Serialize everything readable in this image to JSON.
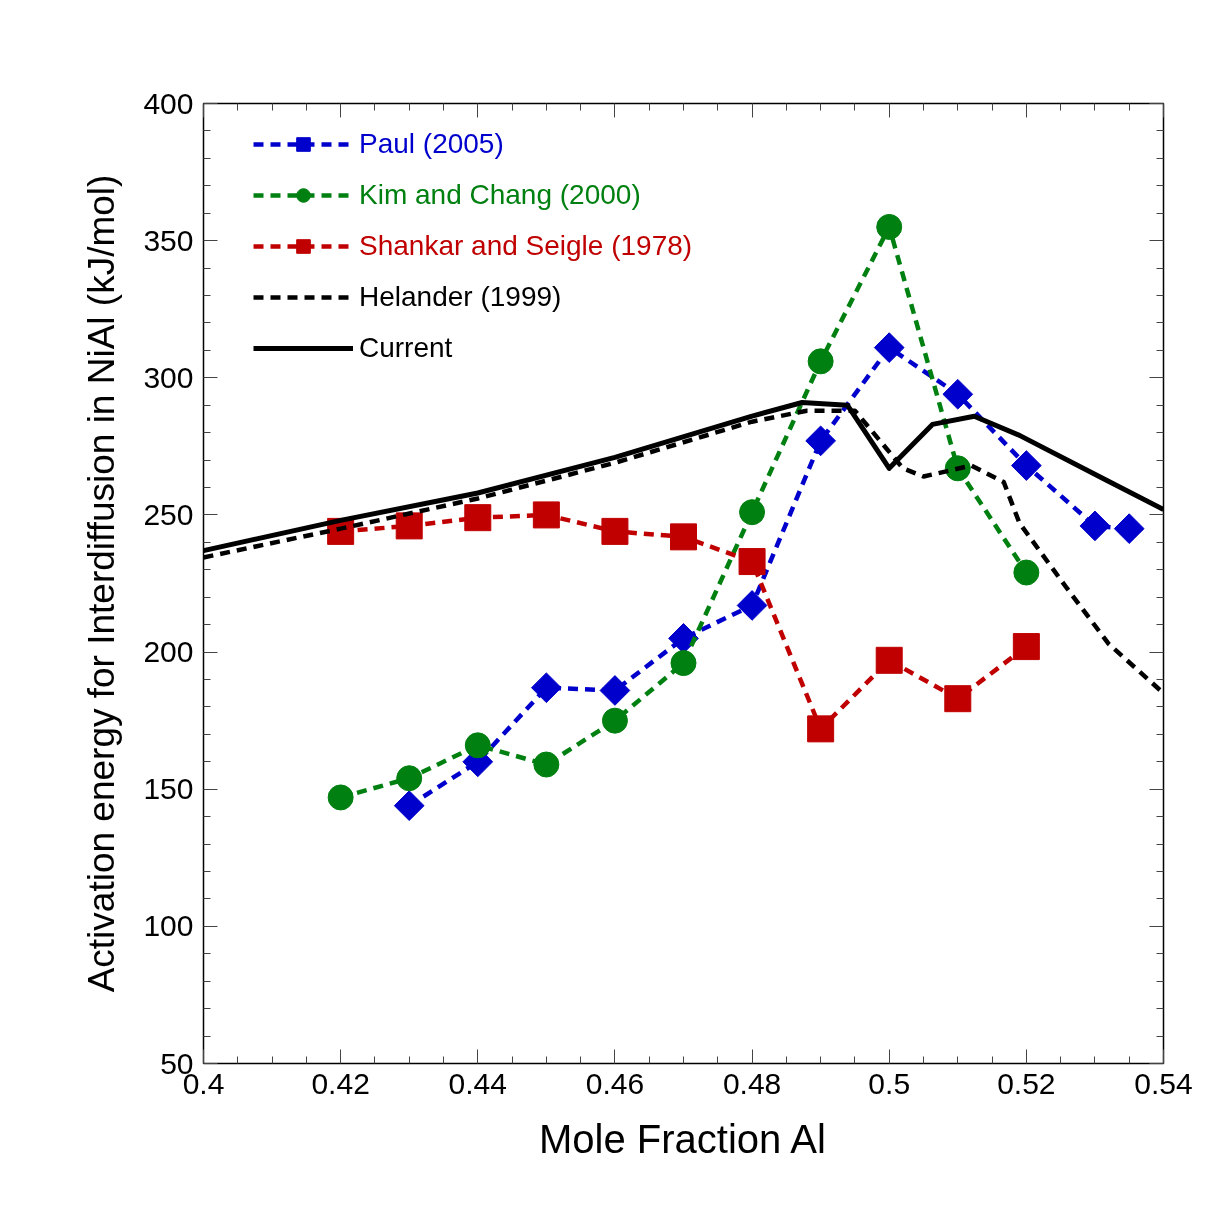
{
  "chart_data": {
    "type": "line",
    "xlabel": "Mole Fraction Al",
    "ylabel": "Activation energy for Interdiffusion in NiAl (kJ/mol)",
    "xlim": [
      0.4,
      0.54
    ],
    "ylim": [
      50,
      400
    ],
    "xticks": [
      0.4,
      {
        "value": 0.405,
        "label": null
      },
      {
        "value": 0.41,
        "label": null
      },
      {
        "value": 0.415,
        "label": null
      },
      0.42,
      {
        "value": 0.425,
        "label": null
      },
      {
        "value": 0.43,
        "label": null
      },
      {
        "value": 0.435,
        "label": null
      },
      0.44,
      {
        "value": 0.445,
        "label": null
      },
      {
        "value": 0.45,
        "label": null
      },
      {
        "value": 0.455,
        "label": null
      },
      0.46,
      {
        "value": 0.465,
        "label": null
      },
      {
        "value": 0.47,
        "label": null
      },
      {
        "value": 0.475,
        "label": null
      },
      0.48,
      {
        "value": 0.485,
        "label": null
      },
      {
        "value": 0.49,
        "label": null
      },
      {
        "value": 0.495,
        "label": null
      },
      0.5,
      {
        "value": 0.505,
        "label": null
      },
      {
        "value": 0.51,
        "label": null
      },
      {
        "value": 0.515,
        "label": null
      },
      0.52,
      {
        "value": 0.525,
        "label": null
      },
      {
        "value": 0.53,
        "label": null
      },
      {
        "value": 0.535,
        "label": null
      },
      0.54
    ],
    "yticks": [
      50,
      {
        "value": 60,
        "label": null
      },
      {
        "value": 70,
        "label": null
      },
      {
        "value": 80,
        "label": null
      },
      {
        "value": 90,
        "label": null
      },
      100,
      {
        "value": 110,
        "label": null
      },
      {
        "value": 120,
        "label": null
      },
      {
        "value": 130,
        "label": null
      },
      {
        "value": 140,
        "label": null
      },
      150,
      {
        "value": 160,
        "label": null
      },
      {
        "value": 170,
        "label": null
      },
      {
        "value": 180,
        "label": null
      },
      {
        "value": 190,
        "label": null
      },
      200,
      {
        "value": 210,
        "label": null
      },
      {
        "value": 220,
        "label": null
      },
      {
        "value": 230,
        "label": null
      },
      {
        "value": 240,
        "label": null
      },
      250,
      {
        "value": 260,
        "label": null
      },
      {
        "value": 270,
        "label": null
      },
      {
        "value": 280,
        "label": null
      },
      {
        "value": 290,
        "label": null
      },
      300,
      {
        "value": 310,
        "label": null
      },
      {
        "value": 320,
        "label": null
      },
      {
        "value": 330,
        "label": null
      },
      {
        "value": 340,
        "label": null
      },
      350,
      {
        "value": 360,
        "label": null
      },
      {
        "value": 370,
        "label": null
      },
      {
        "value": 380,
        "label": null
      },
      {
        "value": 390,
        "label": null
      },
      400
    ],
    "grid": false,
    "legend": "top left",
    "series": [
      {
        "name": "Paul (2005)",
        "color": "#0000cc",
        "marker": "diamond",
        "line_style": "dashed",
        "x": [
          0.43,
          0.44,
          0.45,
          0.46,
          0.47,
          0.48,
          0.49,
          0.5,
          0.51,
          0.52,
          0.53,
          0.535
        ],
        "values": [
          144,
          160,
          187,
          186,
          205,
          217,
          277,
          311,
          294,
          268,
          246,
          245
        ]
      },
      {
        "name": "Kim and Chang (2000)",
        "color": "#008010",
        "marker": "circle",
        "line_style": "dashed",
        "x": [
          0.42,
          0.43,
          0.44,
          0.45,
          0.46,
          0.47,
          0.48,
          0.49,
          0.5,
          0.51,
          0.52
        ],
        "values": [
          147,
          154,
          166,
          159,
          175,
          196,
          251,
          306,
          355,
          267,
          229
        ]
      },
      {
        "name": "Shankar and Seigle (1978)",
        "color": "#c00000",
        "marker": "square",
        "line_style": "dashed",
        "x": [
          0.42,
          0.43,
          0.44,
          0.45,
          0.46,
          0.47,
          0.48,
          0.49,
          0.5,
          0.51,
          0.52
        ],
        "values": [
          244,
          246,
          249,
          250,
          244,
          242,
          233,
          172,
          197,
          183,
          202
        ]
      },
      {
        "name": "Helander (1999)",
        "color": "#000000",
        "marker": "none",
        "line_style": "dashed",
        "x": [
          0.4,
          0.42,
          0.44,
          0.46,
          0.48,
          0.488,
          0.495,
          0.502,
          0.505,
          0.512,
          0.5167,
          0.519,
          0.5257,
          0.532,
          0.54
        ],
        "values": [
          234.5,
          245,
          256,
          269,
          284,
          288,
          288,
          267,
          264,
          268,
          262,
          247,
          224,
          203,
          185
        ]
      },
      {
        "name": "Current",
        "color": "#000000",
        "marker": "none",
        "line_style": "solid",
        "x": [
          0.4,
          0.42,
          0.44,
          0.46,
          0.48,
          0.4873,
          0.4939,
          0.5,
          0.5063,
          0.5124,
          0.519,
          0.5314,
          0.54
        ],
        "values": [
          237,
          248,
          258,
          271,
          286,
          291,
          290,
          267,
          283,
          286,
          279,
          263,
          252
        ]
      }
    ]
  }
}
